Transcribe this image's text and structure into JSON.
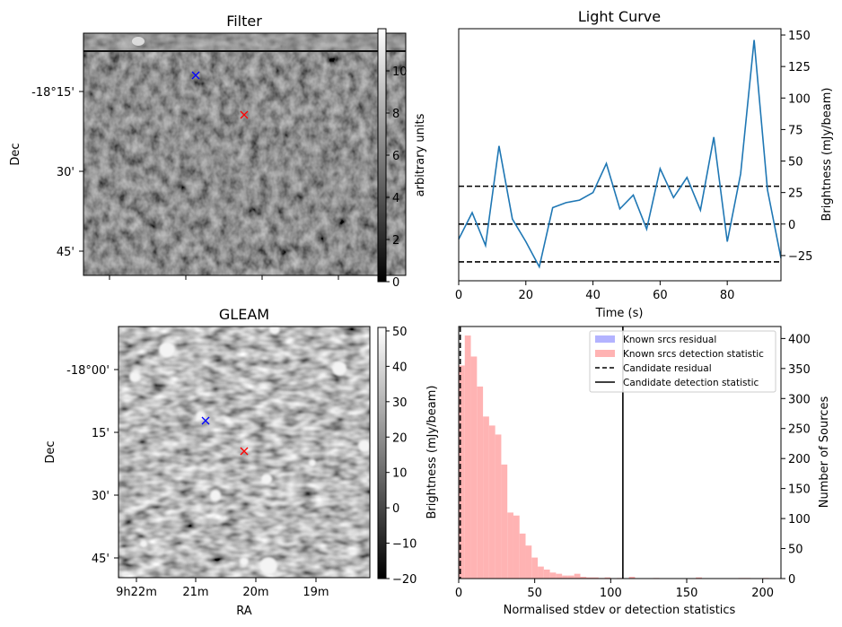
{
  "colors": {
    "line": "#1f77b4",
    "known_residual": "#b3b3ff",
    "known_detection": "#ffb3b3",
    "marker_blue": "#0000ff",
    "marker_red": "#ff0000"
  },
  "chart_data": [
    {
      "id": "filter",
      "type": "heatmap",
      "title": "Filter",
      "xlabel": "",
      "ylabel": "Dec",
      "ytick_labels": [
        "-18°15'",
        "30'",
        "45'"
      ],
      "colorbar": {
        "label": "arbitrary units",
        "range": [
          0,
          12
        ],
        "ticks": [
          0,
          2,
          4,
          6,
          8,
          10
        ]
      },
      "markers": [
        {
          "name": "blue-x",
          "color": "blue",
          "symbol": "x"
        },
        {
          "name": "red-x",
          "color": "red",
          "symbol": "x"
        }
      ]
    },
    {
      "id": "light_curve",
      "type": "line",
      "title": "Light Curve",
      "xlabel": "Time (s)",
      "ylabel": "Brightness (mJy/beam)",
      "xlim": [
        0,
        96
      ],
      "ylim": [
        -45,
        155
      ],
      "xticks": [
        0,
        20,
        40,
        60,
        80
      ],
      "yticks": [
        -25,
        0,
        25,
        50,
        75,
        100,
        125,
        150
      ],
      "x": [
        0,
        4,
        8,
        12,
        16,
        20,
        24,
        28,
        32,
        36,
        40,
        44,
        48,
        52,
        56,
        60,
        64,
        68,
        72,
        76,
        80,
        84,
        88,
        92,
        96
      ],
      "series": [
        {
          "name": "light curve",
          "values": [
            -12,
            9,
            -17,
            62,
            4,
            -14,
            -34,
            13,
            17,
            19,
            25,
            48,
            12,
            23,
            -4,
            44,
            21,
            37,
            11,
            69,
            -14,
            40,
            146,
            27,
            -27
          ]
        }
      ],
      "hlines": [
        {
          "y": 30,
          "style": "dashed"
        },
        {
          "y": 0,
          "style": "dashed"
        },
        {
          "y": -30,
          "style": "dashed"
        }
      ]
    },
    {
      "id": "gleam",
      "type": "heatmap",
      "title": "GLEAM",
      "xlabel": "RA",
      "ylabel": "Dec",
      "xtick_labels": [
        "9h22m",
        "21m",
        "20m",
        "19m"
      ],
      "ytick_labels": [
        "-18°00'",
        "15'",
        "30'",
        "45'"
      ],
      "colorbar": {
        "label": "",
        "range": [
          -20,
          51
        ],
        "ticks": [
          -20,
          -10,
          0,
          10,
          20,
          30,
          40,
          50
        ]
      },
      "markers": [
        {
          "name": "blue-x",
          "color": "blue",
          "symbol": "x"
        },
        {
          "name": "red-x",
          "color": "red",
          "symbol": "x"
        }
      ]
    },
    {
      "id": "histogram",
      "type": "bar",
      "title": "",
      "xlabel": "Normalised stdev or detection statistics",
      "ylabel_left": "Brightness (mJy/beam)",
      "ylabel_right": "Number of Sources",
      "xlim": [
        0,
        212
      ],
      "ylim": [
        0,
        420
      ],
      "xticks": [
        0,
        50,
        100,
        150,
        200
      ],
      "yticks": [
        0,
        50,
        100,
        150,
        200,
        250,
        300,
        350,
        400
      ],
      "bin_width": 4,
      "series": [
        {
          "name": "Known srcs detection statistic",
          "bin_starts": [
            0,
            4,
            8,
            12,
            16,
            20,
            24,
            28,
            32,
            36,
            40,
            44,
            48,
            52,
            56,
            60,
            64,
            68,
            72,
            76,
            80,
            84,
            88,
            92,
            96,
            100,
            104,
            108,
            112,
            116,
            120,
            124,
            128,
            132,
            136,
            140,
            144,
            148,
            152,
            156,
            160,
            164,
            168,
            172,
            176,
            180,
            184,
            188,
            192,
            196,
            200,
            204,
            208
          ],
          "values": [
            355,
            405,
            370,
            320,
            270,
            255,
            240,
            190,
            110,
            105,
            75,
            55,
            35,
            20,
            15,
            10,
            8,
            5,
            5,
            8,
            3,
            2,
            2,
            1,
            2,
            0,
            1,
            0,
            3,
            0,
            0,
            0,
            1,
            0,
            0,
            0,
            0,
            0,
            0,
            2,
            0,
            0,
            0,
            0,
            0,
            0,
            1,
            1,
            0,
            0,
            1,
            0,
            0
          ]
        }
      ],
      "vlines": [
        {
          "name": "Candidate residual",
          "x": 1,
          "style": "dashed"
        },
        {
          "name": "Candidate detection statistic",
          "x": 108,
          "style": "solid"
        }
      ],
      "legend": {
        "position": "top-right",
        "entries": [
          "Known srcs residual",
          "Known srcs detection statistic",
          "Candidate residual",
          "Candidate detection statistic"
        ]
      }
    }
  ]
}
